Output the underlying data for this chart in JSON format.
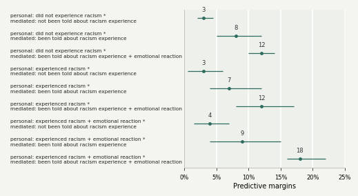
{
  "categories": [
    "personal: did not experience racism *\nmediated: not been told about racism experience",
    "personal: did not experience racism *\nmediated: been told about racism experience",
    "personal: did not experience racism *\nmediated: been told about racism experience + emotional reaction",
    "personal: experienced racism *\nmediated: not been told about racism experience",
    "personal: experienced racism *\nmediated: been told about racism experience",
    "personal: experienced racism *\nmediated: been told about racism experience + emotional reaction",
    "personal: experienced racism + emotional reaction *\nmediated: not been told about racism experience",
    "personal: experienced racism + emotional reaction *\nmediated: been told about racism experience",
    "personal: experienced racism + emotional reaction *\nmediated: been told about racism experience + emotional reaction"
  ],
  "values": [
    3,
    8,
    12,
    3,
    7,
    12,
    4,
    9,
    18
  ],
  "ci_low": [
    2,
    5,
    10,
    0.5,
    4,
    8,
    1.5,
    4,
    16
  ],
  "ci_high": [
    4.5,
    12,
    14,
    6,
    12,
    17,
    7,
    15,
    22
  ],
  "color": "#2d6b5e",
  "plot_bg": "#eef0eb",
  "label_bg": "#f5f5f0",
  "grid_color": "#ffffff",
  "xlabel": "Predictive margins",
  "xlim": [
    0,
    25
  ],
  "xticks": [
    0,
    5,
    10,
    15,
    20,
    25
  ],
  "xticklabels": [
    "0%",
    "5%",
    "10%",
    "15%",
    "20%",
    "25%"
  ],
  "label_fontsize": 5.3,
  "tick_fontsize": 6,
  "xlabel_fontsize": 7,
  "annotation_fontsize": 6.0
}
